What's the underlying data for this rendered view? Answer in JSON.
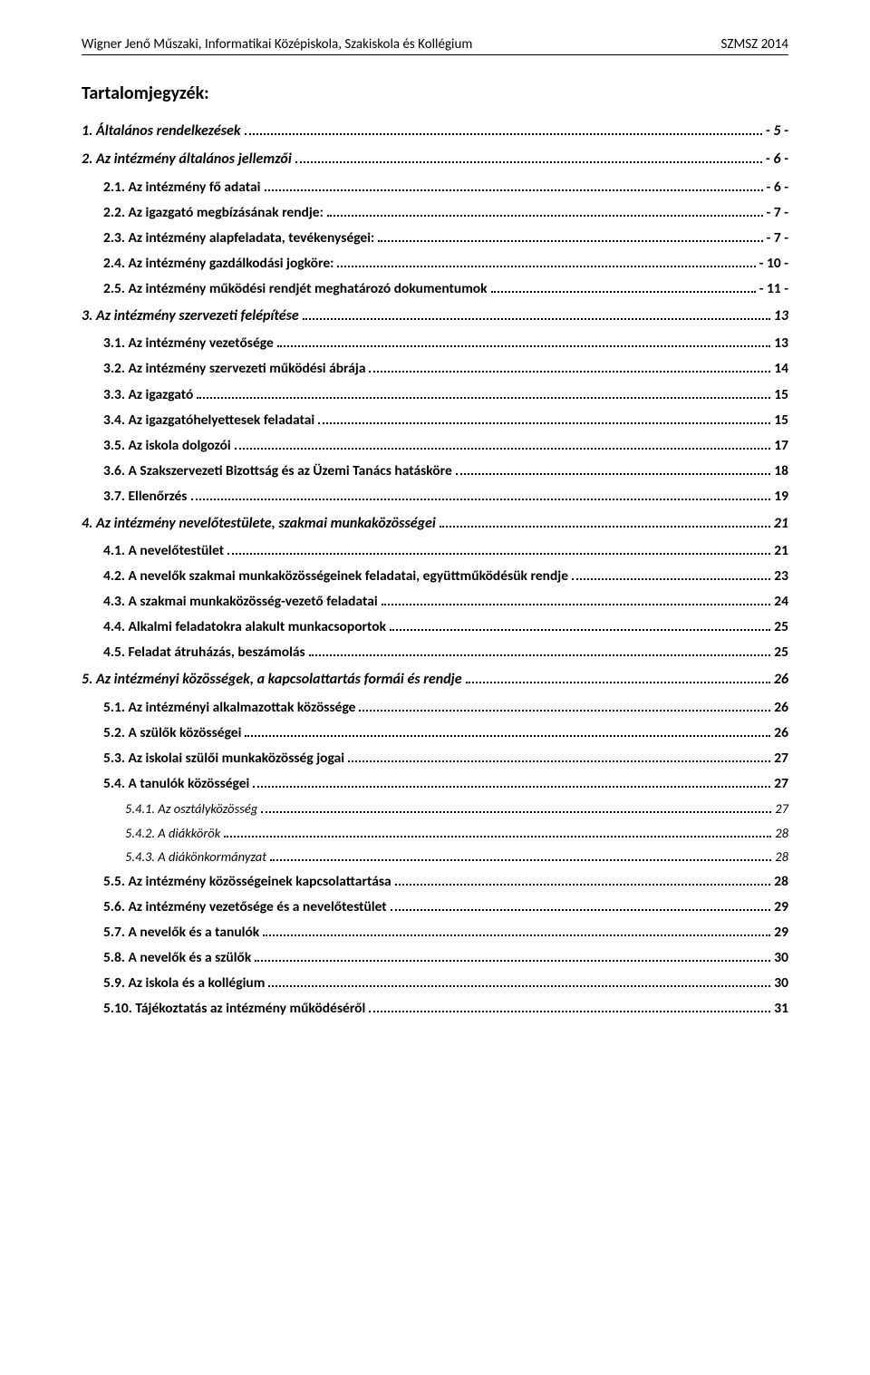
{
  "header": {
    "left": "Wigner Jenő Műszaki, Informatikai Középiskola, Szakiskola és Kollégium",
    "right": "SZMSZ 2014"
  },
  "toc_title": "Tartalomjegyzék:",
  "entries": [
    {
      "level": 1,
      "label": "1. Általános rendelkezések",
      "page": "- 5 -"
    },
    {
      "level": 1,
      "label": "2. Az intézmény általános jellemzői",
      "page": "- 6 -"
    },
    {
      "level": 2,
      "label": "2.1. Az intézmény fő adatai",
      "page": "- 6 -"
    },
    {
      "level": 2,
      "label": "2.2. Az igazgató megbízásának rendje:",
      "page": "- 7 -"
    },
    {
      "level": 2,
      "label": "2.3. Az intézmény alapfeladata, tevékenységei:",
      "page": "- 7 -"
    },
    {
      "level": 2,
      "label": "2.4. Az intézmény gazdálkodási jogköre:",
      "page": "- 10 -"
    },
    {
      "level": 2,
      "label": "2.5. Az intézmény működési rendjét meghatározó dokumentumok",
      "page": "- 11 -"
    },
    {
      "level": 1,
      "label": "3. Az intézmény szervezeti felépítése",
      "page": "13"
    },
    {
      "level": 2,
      "label": "3.1. Az intézmény vezetősége",
      "page": "13"
    },
    {
      "level": 2,
      "label": "3.2. Az intézmény szervezeti működési ábrája",
      "page": "14"
    },
    {
      "level": 2,
      "label": "3.3. Az igazgató",
      "page": "15"
    },
    {
      "level": 2,
      "label": "3.4. Az igazgatóhelyettesek feladatai",
      "page": "15"
    },
    {
      "level": 2,
      "label": "3.5. Az iskola dolgozói",
      "page": "17"
    },
    {
      "level": 2,
      "label": "3.6. A Szakszervezeti Bizottság és az Üzemi Tanács hatásköre",
      "page": "18"
    },
    {
      "level": 2,
      "label": "3.7. Ellenőrzés",
      "page": "19"
    },
    {
      "level": 1,
      "label": "4. Az intézmény nevelőtestülete, szakmai munkaközösségei",
      "page": "21"
    },
    {
      "level": 2,
      "label": "4.1. A nevelőtestület",
      "page": "21"
    },
    {
      "level": 2,
      "label": "4.2. A nevelők szakmai munkaközösségeinek feladatai, együttműködésük rendje",
      "page": "23"
    },
    {
      "level": 2,
      "label": "4.3. A szakmai munkaközösség-vezető feladatai",
      "page": "24"
    },
    {
      "level": 2,
      "label": "4.4. Alkalmi feladatokra alakult munkacsoportok",
      "page": "25"
    },
    {
      "level": 2,
      "label": "4.5. Feladat átruházás, beszámolás",
      "page": "25"
    },
    {
      "level": 1,
      "label": "5. Az intézményi közösségek, a kapcsolattartás formái és rendje",
      "page": "26"
    },
    {
      "level": 2,
      "label": "5.1. Az intézményi alkalmazottak közössége",
      "page": "26"
    },
    {
      "level": 2,
      "label": "5.2. A szülők közösségei",
      "page": "26"
    },
    {
      "level": 2,
      "label": "5.3. Az iskolai szülői munkaközösség jogai",
      "page": "27"
    },
    {
      "level": 2,
      "label": "5.4. A tanulók közösségei",
      "page": "27"
    },
    {
      "level": 3,
      "label": "5.4.1. Az osztályközösség",
      "page": "27"
    },
    {
      "level": 3,
      "label": "5.4.2. A diákkörök",
      "page": "28"
    },
    {
      "level": 3,
      "label": "5.4.3. A diákönkormányzat",
      "page": "28"
    },
    {
      "level": 2,
      "label": "5.5. Az intézmény közösségeinek kapcsolattartása",
      "page": "28"
    },
    {
      "level": 2,
      "label": "5.6. Az intézmény vezetősége és a nevelőtestület",
      "page": "29"
    },
    {
      "level": 2,
      "label": "5.7. A nevelők és a tanulók",
      "page": "29"
    },
    {
      "level": 2,
      "label": "5.8. A nevelők és a szülők",
      "page": "30"
    },
    {
      "level": 2,
      "label": "5.9. Az iskola és a kollégium",
      "page": "30"
    },
    {
      "level": 2,
      "label": "5.10. Tájékoztatás az intézmény működéséről",
      "page": "31"
    }
  ]
}
